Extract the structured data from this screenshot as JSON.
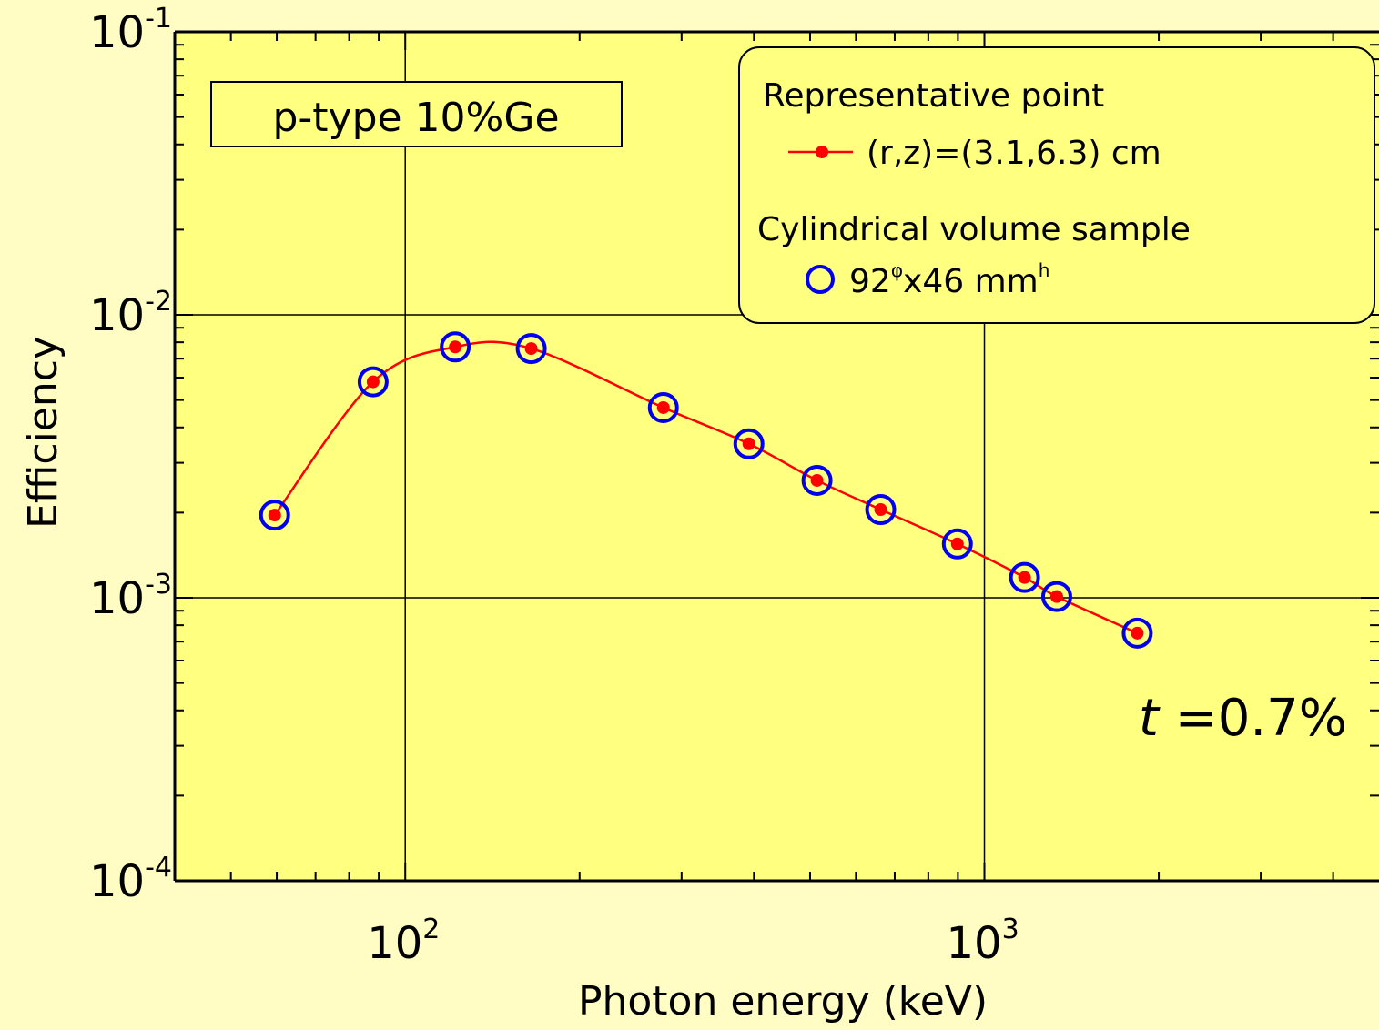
{
  "chart_data": {
    "type": "scatter",
    "xlabel": "Photon energy (keV)",
    "ylabel": "Efficiency",
    "xscale": "log",
    "yscale": "log",
    "xlim": [
      40,
      4800
    ],
    "ylim": [
      0.0001,
      0.1
    ],
    "x_ticks": [
      {
        "base": "10",
        "exp": "2",
        "value": 100
      },
      {
        "base": "10",
        "exp": "3",
        "value": 1000
      }
    ],
    "y_ticks": [
      {
        "base": "10",
        "exp": "-1",
        "value": 0.1
      },
      {
        "base": "10",
        "exp": "-2",
        "value": 0.01
      },
      {
        "base": "10",
        "exp": "-3",
        "value": 0.001
      },
      {
        "base": "10",
        "exp": "-4",
        "value": 0.0001
      }
    ],
    "sample_label": "p-type 10%Ge",
    "annotation": {
      "italic": "t",
      "rest": " =0.7%"
    },
    "legend": {
      "group1_title": "Representative point",
      "series1_label": "(r,z)=(3.1,6.3) cm",
      "group2_title": "Cylindrical volume sample",
      "series2_label": {
        "a": "92",
        "sup1": "φ",
        "b": "x46 mm",
        "sup2": "h"
      }
    },
    "series": [
      {
        "name": "(r,z)=(3.1,6.3) cm",
        "marker": "filled-dot-with-line",
        "color": "#ff0000",
        "x": [
          59.5,
          88,
          122,
          165,
          279,
          392,
          514,
          662,
          898,
          1173,
          1333,
          1836
        ],
        "y": [
          0.00196,
          0.0058,
          0.0077,
          0.0076,
          0.0047,
          0.0035,
          0.0026,
          0.00205,
          0.00155,
          0.00118,
          0.00101,
          0.00075
        ]
      },
      {
        "name": "92φx46 mmh",
        "marker": "open-circle",
        "color": "#0000ee",
        "x": [
          59.5,
          88,
          122,
          165,
          279,
          392,
          514,
          662,
          898,
          1173,
          1333,
          1836
        ],
        "y": [
          0.00196,
          0.0058,
          0.0077,
          0.0076,
          0.0047,
          0.0035,
          0.0026,
          0.00205,
          0.00155,
          0.00118,
          0.00101,
          0.00075
        ]
      }
    ]
  }
}
